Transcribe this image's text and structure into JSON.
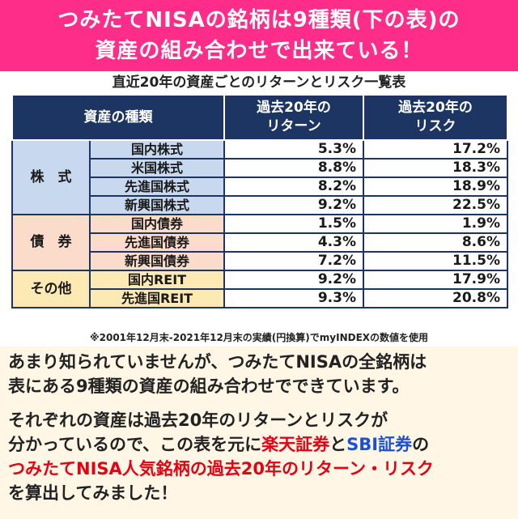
{
  "banner": {
    "line1": "つみたてNISAの銘柄は9種類(下の表)の",
    "line2": "資産の組み合わせで出来ている！"
  },
  "table": {
    "title": "直近20年の資産ごとのリターンとリスク一覧表",
    "headers": {
      "asset": "資産の種類",
      "return_l1": "過去20年の",
      "return_l2": "リターン",
      "risk_l1": "過去20年の",
      "risk_l2": "リスク"
    },
    "groups": [
      {
        "category": "株　式",
        "rows": [
          {
            "name": "国内株式",
            "return": "5.3%",
            "risk": "17.2%"
          },
          {
            "name": "米国株式",
            "return": "8.8%",
            "risk": "18.3%"
          },
          {
            "name": "先進国株式",
            "return": "8.2%",
            "risk": "18.9%"
          },
          {
            "name": "新興国株式",
            "return": "9.2%",
            "risk": "22.5%"
          }
        ]
      },
      {
        "category": "債　券",
        "rows": [
          {
            "name": "国内債券",
            "return": "1.5%",
            "risk": "1.9%"
          },
          {
            "name": "先進国債券",
            "return": "4.3%",
            "risk": "8.6%"
          },
          {
            "name": "新興国債券",
            "return": "7.2%",
            "risk": "11.5%"
          }
        ]
      },
      {
        "category": "その他",
        "rows": [
          {
            "name": "国内REIT",
            "return": "9.2%",
            "risk": "17.9%"
          },
          {
            "name": "先進国REIT",
            "return": "9.3%",
            "risk": "20.8%"
          }
        ]
      }
    ],
    "note": "※2001年12月末-2021年12月末の実績(円換算)でmyINDEXの数値を使用"
  },
  "body": {
    "p1_l1": "あまり知られていませんが、つみたてNISAの全銘柄は",
    "p1_l2": "表にある9種類の資産の組み合わせでできています。",
    "p2_l1": "それぞれの資産は過去20年のリターンとリスクが",
    "p2_l2_a": "分かっているので、この表を元に",
    "p2_l2_rakuten": "楽天証券",
    "p2_l2_to": "と",
    "p2_l2_sbi": "SBI証券",
    "p2_l2_no": "の",
    "p2_l3": "つみたてNISA人気銘柄の過去20年のリターン・リスク",
    "p2_l4": "を算出してみました！"
  },
  "colors": {
    "banner": "#ff2d8a",
    "header": "#1c3563",
    "stocks": "#c7d8ef",
    "bonds": "#fbdccb",
    "other": "#fde9b4",
    "highlight_red": "#e60012",
    "highlight_blue": "#1a4fd8"
  }
}
